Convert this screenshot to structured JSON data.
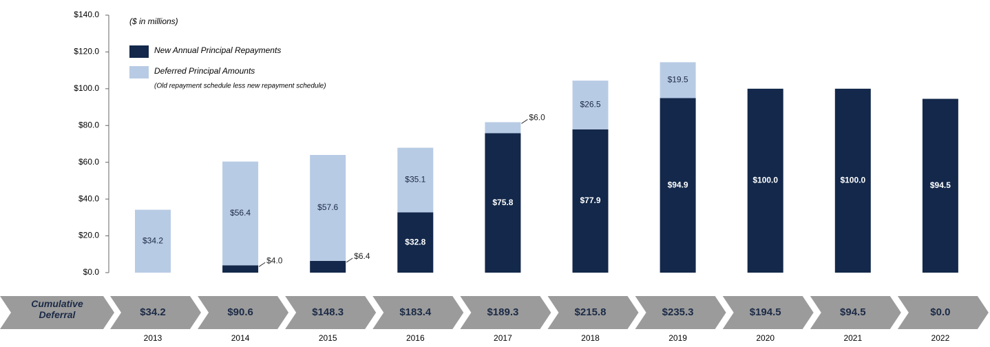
{
  "chart_data": {
    "type": "stacked_bar",
    "subtitle": "($ in millions)",
    "categories": [
      "2013",
      "2014",
      "2015",
      "2016",
      "2017",
      "2018",
      "2019",
      "2020",
      "2021",
      "2022"
    ],
    "series": [
      {
        "name": "New Annual Principal Repayments",
        "color": "#13284a",
        "values": [
          null,
          4.0,
          6.4,
          32.8,
          75.8,
          77.9,
          94.9,
          100.0,
          100.0,
          94.5
        ],
        "value_labels": [
          null,
          "$4.0",
          "$6.4",
          "$32.8",
          "$75.8",
          "$77.9",
          "$94.9",
          "$100.0",
          "$100.0",
          "$94.5"
        ]
      },
      {
        "name": "Deferred Principal Amounts",
        "color": "#b8cbe5",
        "note": "(Old repayment schedule less new repayment schedule)",
        "values": [
          34.2,
          56.4,
          57.6,
          35.1,
          6.0,
          26.5,
          19.5,
          null,
          null,
          null
        ],
        "value_labels": [
          "$34.2",
          "$56.4",
          "$57.6",
          "$35.1",
          "$6.0",
          "$26.5",
          "$19.5",
          null,
          null,
          null
        ]
      }
    ],
    "ylim": [
      0,
      140
    ],
    "yticks": [
      {
        "value": 0,
        "label": "$0.0"
      },
      {
        "value": 20,
        "label": "$20.0"
      },
      {
        "value": 40,
        "label": "$40.0"
      },
      {
        "value": 60,
        "label": "$60.0"
      },
      {
        "value": 80,
        "label": "$80.0"
      },
      {
        "value": 100,
        "label": "$100.0"
      },
      {
        "value": 120,
        "label": "$120.0"
      },
      {
        "value": 140,
        "label": "$140.0"
      }
    ],
    "cumulative_deferral": {
      "label": "Cumulative Deferral",
      "values": [
        34.2,
        90.6,
        148.3,
        183.4,
        189.3,
        215.8,
        235.3,
        194.5,
        94.5,
        0.0
      ],
      "value_labels": [
        "$34.2",
        "$90.6",
        "$148.3",
        "$183.4",
        "$189.3",
        "$215.8",
        "$235.3",
        "$194.5",
        "$94.5",
        "$0.0"
      ],
      "color": "#9b9b9b"
    }
  }
}
